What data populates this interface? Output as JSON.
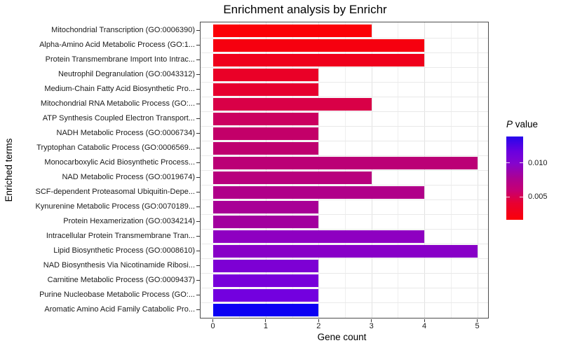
{
  "title": "Enrichment analysis by Enrichr",
  "chart_data": {
    "type": "bar",
    "orientation": "horizontal",
    "title": "Enrichment analysis by Enrichr",
    "xlabel": "Gene count",
    "ylabel": "Enriched terms",
    "xlim": [
      0,
      5.25
    ],
    "x_ticks": [
      0,
      1,
      2,
      3,
      4,
      5
    ],
    "grid": true,
    "categories": [
      "Mitochondrial Transcription (GO:0006390)",
      "Alpha-Amino Acid Metabolic Process (GO:1...",
      "Protein Transmembrane Import Into Intrac...",
      "Neutrophil Degranulation (GO:0043312)",
      "Medium-Chain Fatty Acid Biosynthetic Pro...",
      "Mitochondrial RNA Metabolic Process (GO:...",
      "ATP Synthesis Coupled Electron Transport...",
      "NADH Metabolic Process (GO:0006734)",
      "Tryptophan Catabolic Process (GO:0006569...",
      "Monocarboxylic Acid Biosynthetic Process...",
      "NAD Metabolic Process (GO:0019674)",
      "SCF-dependent Proteasomal Ubiquitin-Depe...",
      "Kynurenine Metabolic Process (GO:0070189...",
      "Protein Hexamerization (GO:0034214)",
      "Intracellular Protein Transmembrane Tran...",
      "Lipid Biosynthetic Process (GO:0008610)",
      "NAD Biosynthesis Via Nicotinamide Ribosi...",
      "Carnitine Metabolic Process (GO:0009437)",
      "Purine Nucleobase Metabolic Process (GO:...",
      "Aromatic Amino Acid Family Catabolic Pro..."
    ],
    "values": [
      3,
      4,
      4,
      2,
      2,
      3,
      2,
      2,
      2,
      5,
      3,
      4,
      2,
      2,
      4,
      5,
      2,
      2,
      2,
      2
    ],
    "bar_colors": [
      "#FB0007",
      "#F6000F",
      "#EF001C",
      "#EA0027",
      "#E6002E",
      "#D90047",
      "#CB0060",
      "#C30069",
      "#BE006F",
      "#BB0076",
      "#B8007D",
      "#B00089",
      "#A80096",
      "#A2009E",
      "#8E00C1",
      "#8800C7",
      "#7D00D4",
      "#7800DA",
      "#7300DF",
      "#0C00F3"
    ],
    "legend": {
      "title_italic": "P",
      "title_rest": " value",
      "position": "right",
      "ticks": [
        {
          "label": "0.010",
          "pos": 0.319
        },
        {
          "label": "0.005",
          "pos": 0.723
        }
      ],
      "gradient_stops": [
        [
          "0%",
          "#2606EC"
        ],
        [
          "18%",
          "#6A00DF"
        ],
        [
          "32%",
          "#8404CE"
        ],
        [
          "50%",
          "#AC0192"
        ],
        [
          "65%",
          "#C70072"
        ],
        [
          "80%",
          "#E80031"
        ],
        [
          "100%",
          "#FB0008"
        ]
      ]
    }
  }
}
